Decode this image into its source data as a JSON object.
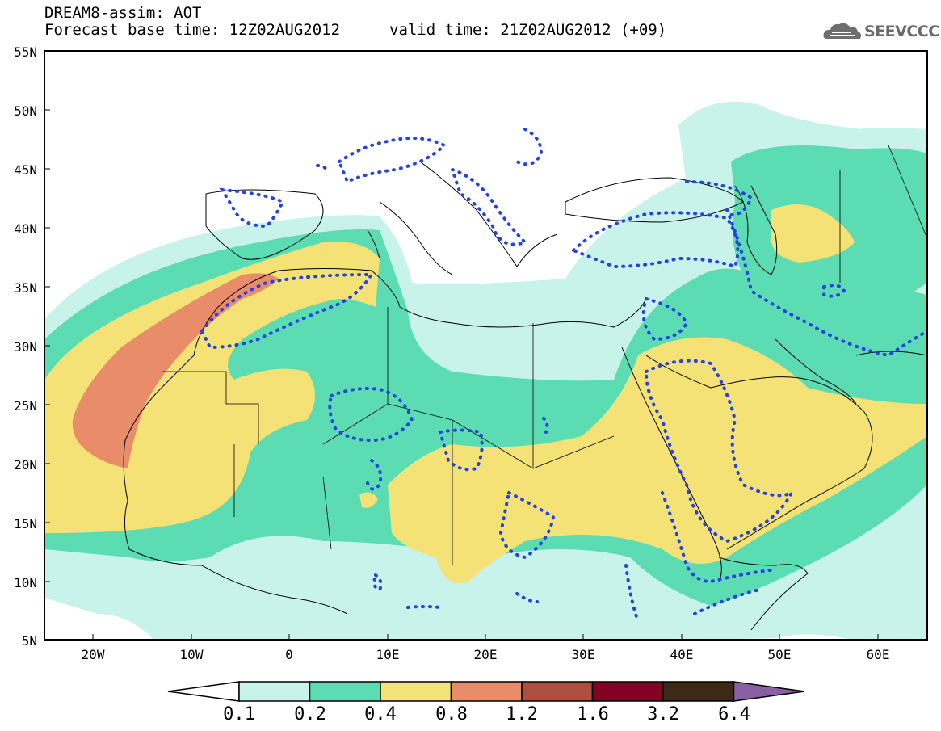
{
  "header": {
    "line1": "DREAM8-assim: AOT",
    "line2": "Forecast base time: 12Z02AUG2012",
    "valid": "valid time: 21Z02AUG2012 (+09)"
  },
  "logo": {
    "text": "SEEVCCC",
    "icon": "cloud-icon"
  },
  "axes": {
    "lat_labels": [
      "55N",
      "50N",
      "45N",
      "40N",
      "35N",
      "30N",
      "25N",
      "20N",
      "15N",
      "10N",
      "5N"
    ],
    "lon_labels": [
      "20W",
      "10W",
      "0",
      "10E",
      "20E",
      "30E",
      "40E",
      "50E",
      "60E"
    ]
  },
  "colorbar": {
    "labels": [
      "0.1",
      "0.2",
      "0.4",
      "0.8",
      "1.2",
      "1.6",
      "3.2",
      "6.4"
    ],
    "colors": [
      "#ffffff",
      "#c8f3ea",
      "#5cdcb3",
      "#f4e276",
      "#e88c69",
      "#ac4f3e",
      "#850024",
      "#3d2916",
      "#8a60a4"
    ]
  },
  "map": {
    "lat_range": [
      5,
      55
    ],
    "lon_range": [
      -25,
      65
    ],
    "contour_style": "blue-dotted",
    "coastline_color": "#000000"
  }
}
